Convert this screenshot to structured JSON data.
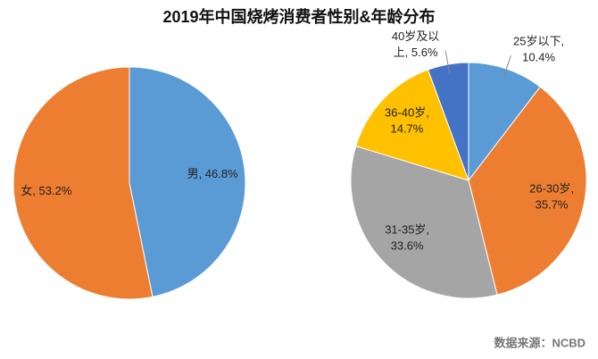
{
  "title": "2019年中国烧烤消费者性别&年龄分布",
  "source": "数据来源：NCBD",
  "chart_data": [
    {
      "type": "pie",
      "categories": [
        "男",
        "女"
      ],
      "values": [
        46.8,
        53.2
      ],
      "value_labels": [
        "男, 46.8%",
        "女, 53.2%"
      ],
      "colors": [
        "#5b9bd5",
        "#ed7d31"
      ]
    },
    {
      "type": "pie",
      "categories": [
        "25岁以下",
        "26-30岁",
        "31-35岁",
        "36-40岁",
        "40岁及以上"
      ],
      "values": [
        10.4,
        35.7,
        33.6,
        14.7,
        5.6
      ],
      "value_labels": [
        "25岁以下,\n10.4%",
        "26-30岁,\n35.7%",
        "31-35岁,\n33.6%",
        "36-40岁,\n14.7%",
        "40岁及以\n上, 5.6%"
      ],
      "colors": [
        "#5b9bd5",
        "#ed7d31",
        "#a5a5a5",
        "#ffc000",
        "#4472c4"
      ]
    }
  ]
}
